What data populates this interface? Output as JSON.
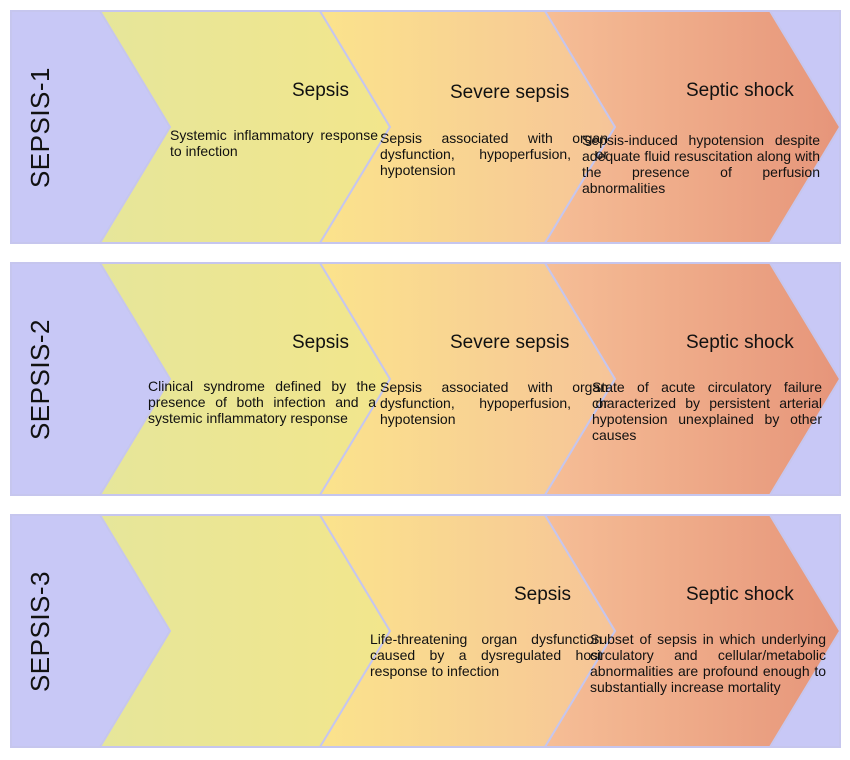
{
  "colors": {
    "label_panel": "#C8C8F6",
    "border": "#C6C6EE",
    "stage1": [
      "#E6E69A",
      "#F2E68C"
    ],
    "stage2": [
      "#FBE38C",
      "#F6C498"
    ],
    "stage3": [
      "#F6BE96",
      "#E6957A"
    ]
  },
  "rows": [
    {
      "label": "SEPSIS-1",
      "stages": [
        {
          "title": "Sepsis",
          "text": "Systemic inflammatory response to infection"
        },
        {
          "title": "Severe sepsis",
          "text": "Sepsis associated with organ dysfunction, hypoperfusion, or hypotension"
        },
        {
          "title": "Septic shock",
          "text": "Sepsis-induced hypotension despite adequate fluid resuscitation along with the presence of perfusion abnormalities"
        }
      ]
    },
    {
      "label": "SEPSIS-2",
      "stages": [
        {
          "title": "Sepsis",
          "text": "Clinical syndrome defined by the presence of both infection and a systemic inflammatory response"
        },
        {
          "title": "Severe sepsis",
          "text": "Sepsis associated with organ dysfunction, hypoperfusion, or hypotension"
        },
        {
          "title": "Septic shock",
          "text": "State of acute circulatory failure characterized by persistent arterial hypotension unexplained by other causes"
        }
      ]
    },
    {
      "label": "SEPSIS-3",
      "stages": [
        {
          "title": "Sepsis",
          "text": "Life-threatening organ dysfunction caused by a dysregulated host response to infection"
        },
        {
          "title": "Septic shock",
          "text": "Subset of sepsis in which underlying circulatory and cellular/metabolic abnormalities are profound enough to substantially increase mortality"
        }
      ]
    }
  ]
}
